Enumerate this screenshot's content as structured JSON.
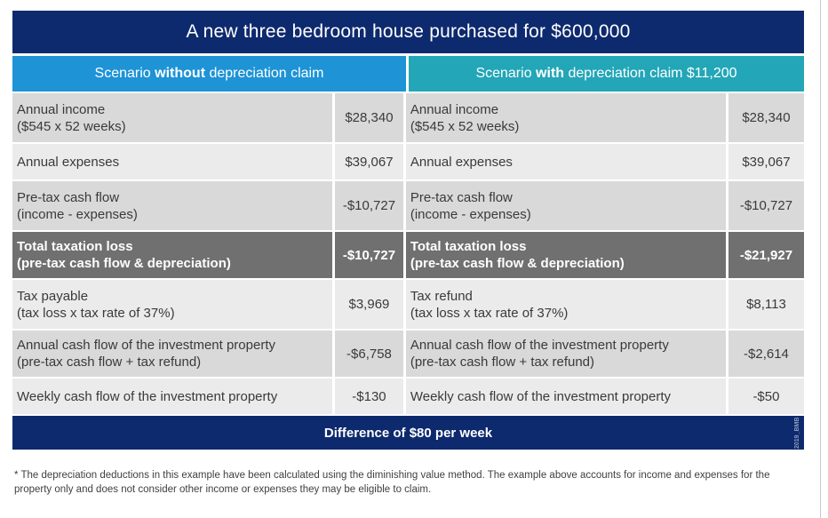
{
  "title": "A new three bedroom house purchased for $600,000",
  "scenarios": {
    "left": {
      "prefix": "Scenario ",
      "emphasis": "without",
      "suffix": " depreciation claim"
    },
    "right": {
      "prefix": "Scenario ",
      "emphasis": "with",
      "suffix": " depreciation claim $11,200"
    }
  },
  "rows": [
    {
      "left_label": [
        "Annual income",
        "($545 x 52 weeks)"
      ],
      "left_value": "$28,340",
      "right_label": [
        "Annual income",
        "($545 x 52 weeks)"
      ],
      "right_value": "$28,340"
    },
    {
      "left_label": [
        "Annual expenses"
      ],
      "left_value": "$39,067",
      "right_label": [
        "Annual expenses"
      ],
      "right_value": "$39,067"
    },
    {
      "left_label": [
        "Pre-tax cash flow",
        "(income - expenses)"
      ],
      "left_value": "-$10,727",
      "right_label": [
        "Pre-tax cash flow",
        "(income - expenses)"
      ],
      "right_value": "-$10,727"
    },
    {
      "left_label": [
        "Total taxation loss",
        "(pre-tax cash flow & depreciation)"
      ],
      "left_value": "-$10,727",
      "right_label": [
        "Total taxation loss",
        "(pre-tax cash flow & depreciation)"
      ],
      "right_value": "-$21,927"
    },
    {
      "left_label": [
        "Tax payable",
        "(tax loss x tax rate of 37%)"
      ],
      "left_value": "$3,969",
      "right_label": [
        "Tax refund",
        "(tax loss x tax rate of 37%)"
      ],
      "right_value": "$8,113"
    },
    {
      "left_label": [
        "Annual cash flow of the investment property",
        "(pre-tax cash flow + tax refund)"
      ],
      "left_value": "-$6,758",
      "right_label": [
        "Annual cash flow of the investment property",
        "(pre-tax cash flow + tax refund)"
      ],
      "right_value": "-$2,614"
    },
    {
      "left_label": [
        "Weekly cash flow of the investment property"
      ],
      "left_value": "-$130",
      "right_label": [
        "Weekly cash flow of the investment property"
      ],
      "right_value": "-$50"
    }
  ],
  "difference": "Difference of $80 per week",
  "watermark": "2019_BMB",
  "footnote": "* The depreciation deductions in this example have been calculated using the diminishing value method. The example above accounts for income and expenses for the property only and does not consider other income or expenses they may be eligible to claim."
}
